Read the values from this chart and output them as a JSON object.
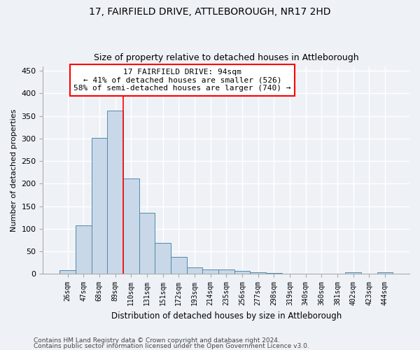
{
  "title": "17, FAIRFIELD DRIVE, ATTLEBOROUGH, NR17 2HD",
  "subtitle": "Size of property relative to detached houses in Attleborough",
  "xlabel": "Distribution of detached houses by size in Attleborough",
  "ylabel": "Number of detached properties",
  "bar_color": "#c8d8e8",
  "bar_edge_color": "#5588aa",
  "bar_width": 1.0,
  "categories": [
    "26sqm",
    "47sqm",
    "68sqm",
    "89sqm",
    "110sqm",
    "131sqm",
    "151sqm",
    "172sqm",
    "193sqm",
    "214sqm",
    "235sqm",
    "256sqm",
    "277sqm",
    "298sqm",
    "319sqm",
    "340sqm",
    "360sqm",
    "381sqm",
    "402sqm",
    "423sqm",
    "444sqm"
  ],
  "values": [
    8,
    108,
    302,
    362,
    212,
    136,
    68,
    38,
    14,
    10,
    9,
    6,
    4,
    2,
    0,
    0,
    0,
    0,
    3,
    0,
    3
  ],
  "ylim": [
    0,
    460
  ],
  "yticks": [
    0,
    50,
    100,
    150,
    200,
    250,
    300,
    350,
    400,
    450
  ],
  "property_line_x": 3.5,
  "annotation_line1": "17 FAIRFIELD DRIVE: 94sqm",
  "annotation_line2": "← 41% of detached houses are smaller (526)",
  "annotation_line3": "58% of semi-detached houses are larger (740) →",
  "footer_line1": "Contains HM Land Registry data © Crown copyright and database right 2024.",
  "footer_line2": "Contains public sector information licensed under the Open Government Licence v3.0.",
  "bg_color": "#eef2f7",
  "plot_bg_color": "#eef2f7",
  "grid_color": "#ffffff"
}
